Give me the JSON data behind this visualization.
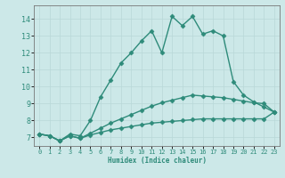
{
  "xlabel": "Humidex (Indice chaleur)",
  "ylabel": "",
  "background_color": "#cce8e8",
  "line_color": "#2e8b7a",
  "grid_color": "#b8d8d8",
  "xlim": [
    -0.5,
    23.5
  ],
  "ylim": [
    6.5,
    14.8
  ],
  "x_ticks": [
    0,
    1,
    2,
    3,
    4,
    5,
    6,
    7,
    8,
    9,
    10,
    11,
    12,
    13,
    14,
    15,
    16,
    17,
    18,
    19,
    20,
    21,
    22,
    23
  ],
  "y_ticks": [
    7,
    8,
    9,
    10,
    11,
    12,
    13,
    14
  ],
  "curves": [
    {
      "x": [
        0,
        1,
        2,
        3,
        4,
        5,
        6,
        7,
        8,
        9,
        10,
        11,
        12,
        13,
        14,
        15,
        16,
        17,
        18,
        19,
        20,
        21,
        22,
        23
      ],
      "y": [
        7.2,
        7.1,
        6.8,
        7.2,
        7.1,
        8.0,
        9.4,
        10.4,
        11.4,
        12.0,
        12.7,
        13.3,
        12.0,
        14.15,
        13.6,
        14.15,
        13.1,
        13.3,
        13.0,
        10.3,
        9.5,
        9.1,
        8.8,
        8.5
      ],
      "marker": "D",
      "marker_size": 2.5,
      "lw": 1.0
    },
    {
      "x": [
        0,
        1,
        2,
        3,
        4,
        5,
        6,
        7,
        8,
        9,
        10,
        11,
        12,
        13,
        14,
        15,
        16,
        17,
        18,
        19,
        20,
        21,
        22,
        23
      ],
      "y": [
        7.2,
        7.1,
        6.8,
        7.1,
        6.95,
        7.15,
        7.3,
        7.45,
        7.55,
        7.65,
        7.75,
        7.85,
        7.9,
        7.95,
        8.0,
        8.05,
        8.1,
        8.1,
        8.1,
        8.1,
        8.1,
        8.1,
        8.1,
        8.5
      ],
      "marker": "D",
      "marker_size": 2.5,
      "lw": 1.0
    },
    {
      "x": [
        0,
        1,
        2,
        3,
        4,
        5,
        6,
        7,
        8,
        9,
        10,
        11,
        12,
        13,
        14,
        15,
        16,
        17,
        18,
        19,
        20,
        21,
        22,
        23
      ],
      "y": [
        7.2,
        7.1,
        6.8,
        7.1,
        6.95,
        7.25,
        7.55,
        7.85,
        8.1,
        8.35,
        8.6,
        8.85,
        9.05,
        9.2,
        9.35,
        9.5,
        9.45,
        9.4,
        9.35,
        9.25,
        9.15,
        9.05,
        9.0,
        8.5
      ],
      "marker": "D",
      "marker_size": 2.5,
      "lw": 1.0
    }
  ]
}
